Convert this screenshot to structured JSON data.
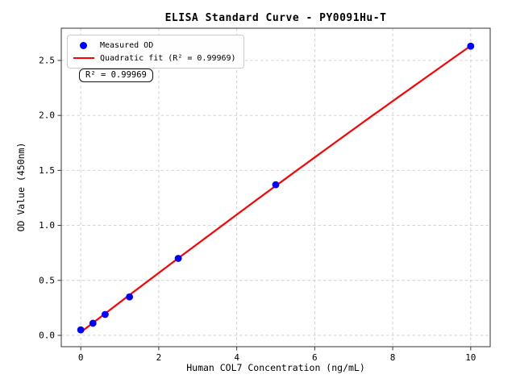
{
  "chart_data": {
    "type": "scatter",
    "title": "ELISA Standard Curve - PY0091Hu-T",
    "xlabel": "Human COL7 Concentration (ng/mL)",
    "ylabel": "OD Value (450nm)",
    "x_ticks": [
      0,
      2,
      4,
      6,
      8,
      10
    ],
    "y_ticks": [
      0.0,
      0.5,
      1.0,
      1.5,
      2.0,
      2.5
    ],
    "xlim": [
      -0.5,
      10.5
    ],
    "ylim": [
      -0.103,
      2.793
    ],
    "grid": true,
    "grid_style": "dashed",
    "legend_position": "upper-left",
    "annotation": "R² = 0.99969",
    "series": [
      {
        "name": "Measured OD",
        "type": "scatter",
        "color": "#0000ff",
        "x": [
          0,
          0.3125,
          0.625,
          1.25,
          2.5,
          5,
          10
        ],
        "y": [
          0.05,
          0.11,
          0.19,
          0.35,
          0.7,
          1.37,
          2.63
        ]
      },
      {
        "name": "Quadratic fit (R² = 0.99969)",
        "type": "line",
        "color": "#ff0000",
        "fit": "quadratic",
        "x_range": [
          0,
          10
        ]
      }
    ]
  }
}
